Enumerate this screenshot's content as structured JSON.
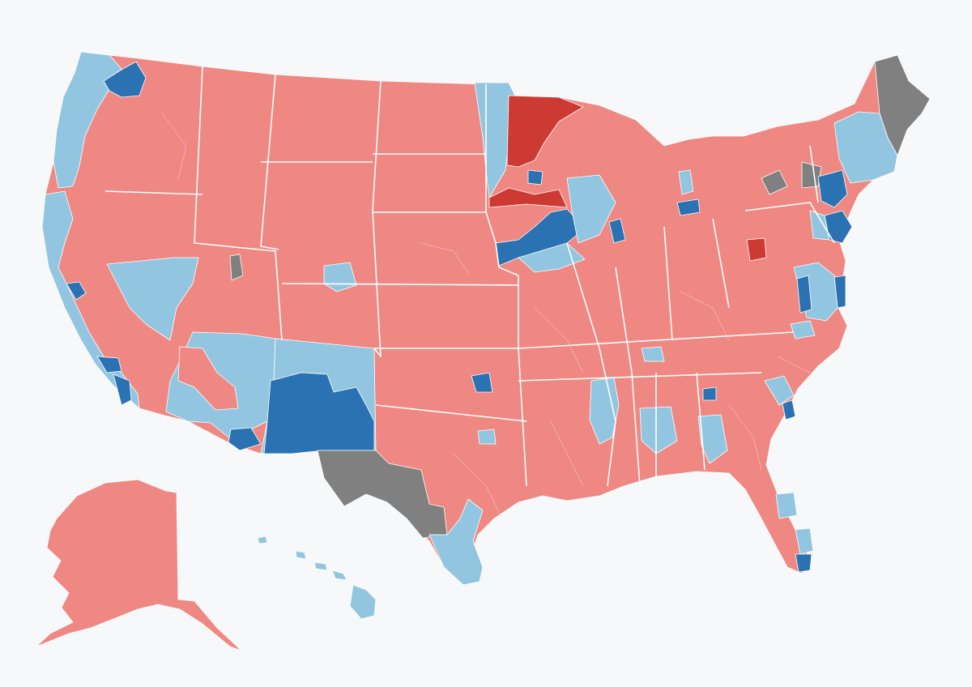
{
  "map": {
    "background": "#f7f8fa",
    "categories": {
      "likely_r": "#ef8782",
      "safe_r": "#cc3a33",
      "likely_d": "#92c6e0",
      "safe_d": "#2a72b2",
      "tossup": "#808080"
    },
    "regions": [
      {
        "name": "alaska",
        "category": "likely_r"
      },
      {
        "name": "hawaii",
        "category": "likely_d"
      },
      {
        "name": "contiguous-us",
        "category": "likely_r"
      },
      {
        "name": "pacific-coast",
        "category": "likely_d"
      },
      {
        "name": "seattle-area",
        "category": "safe_d"
      },
      {
        "name": "nevada",
        "category": "likely_d"
      },
      {
        "name": "arizona",
        "category": "likely_d"
      },
      {
        "name": "new-mexico-outer",
        "category": "likely_d"
      },
      {
        "name": "new-mexico-core",
        "category": "safe_d"
      },
      {
        "name": "west-texas",
        "category": "tossup"
      },
      {
        "name": "south-texas",
        "category": "likely_d"
      },
      {
        "name": "minnesota-north",
        "category": "safe_r"
      },
      {
        "name": "minnesota-west",
        "category": "likely_d"
      },
      {
        "name": "iowa-east",
        "category": "safe_d"
      },
      {
        "name": "maine",
        "category": "tossup"
      },
      {
        "name": "new-england",
        "category": "likely_d"
      },
      {
        "name": "new-york-east",
        "category": "safe_d"
      },
      {
        "name": "upstate-ny",
        "category": "tossup"
      },
      {
        "name": "mid-atlantic",
        "category": "safe_d"
      },
      {
        "name": "virginia-coast",
        "category": "likely_d"
      },
      {
        "name": "mississippi-delta",
        "category": "likely_d"
      },
      {
        "name": "south-florida",
        "category": "safe_d"
      }
    ]
  }
}
